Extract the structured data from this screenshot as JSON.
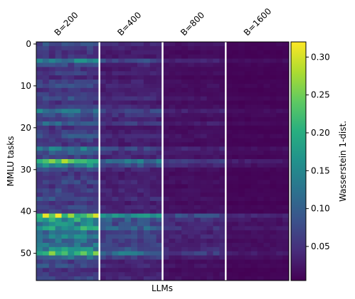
{
  "chart_data": {
    "type": "heatmap",
    "title": "",
    "xlabel": "LLMs",
    "ylabel": "MMLU tasks",
    "group_labels": [
      "B=200",
      "B=400",
      "B=800",
      "B=1600"
    ],
    "columns_per_group": 10,
    "rows": 57,
    "y_ticks": [
      0,
      10,
      20,
      30,
      40,
      50
    ],
    "colorbar": {
      "label": "Wasserstein 1-dist.",
      "colormap": "viridis",
      "range": [
        0.005,
        0.32
      ],
      "ticks": [
        "0.05",
        "0.10",
        "0.15",
        "0.20",
        "0.25",
        "0.30"
      ]
    },
    "group_mean_scale": [
      1.0,
      0.55,
      0.28,
      0.14
    ],
    "row_base_values": [
      0.08,
      0.06,
      0.05,
      0.05,
      0.13,
      0.07,
      0.05,
      0.06,
      0.04,
      0.06,
      0.07,
      0.05,
      0.06,
      0.08,
      0.05,
      0.07,
      0.12,
      0.09,
      0.06,
      0.11,
      0.05,
      0.06,
      0.08,
      0.06,
      0.05,
      0.13,
      0.09,
      0.07,
      0.22,
      0.14,
      0.07,
      0.05,
      0.06,
      0.07,
      0.05,
      0.07,
      0.06,
      0.08,
      0.05,
      0.07,
      0.06,
      0.26,
      0.17,
      0.14,
      0.18,
      0.12,
      0.13,
      0.11,
      0.12,
      0.15,
      0.21,
      0.11,
      0.06,
      0.08,
      0.05,
      0.06,
      0.07
    ],
    "separators_color": "#ffffff"
  }
}
